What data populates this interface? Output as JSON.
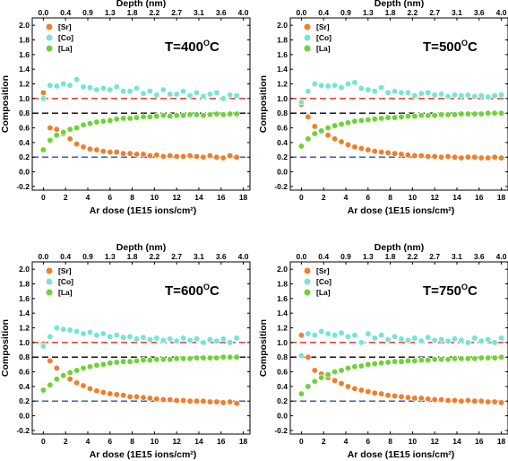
{
  "colors": {
    "Sr": "#f07f2a",
    "Co": "#74e6d3",
    "La": "#6ed336",
    "ref_red": "#e8332a",
    "ref_black": "#000000",
    "ref_blue": "#2f4fa8"
  },
  "chart_data": [
    {
      "type": "scatter",
      "temp_prefix": "T=",
      "temp_value": "400",
      "temp_sup": "O",
      "temp_unit": "C",
      "xlabel": "Ar dose (1E15 ions/cm²)",
      "ylabel": "Composition",
      "x2label": "Depth (nm)",
      "xlim": [
        -1,
        18.6
      ],
      "ylim": [
        -0.25,
        2.1
      ],
      "xticks": [
        "0",
        "2",
        "4",
        "6",
        "8",
        "10",
        "12",
        "14",
        "16",
        "18"
      ],
      "yticks": [
        "-0.2",
        "0.0",
        "0.2",
        "0.4",
        "0.6",
        "0.8",
        "1.0",
        "1.2",
        "1.4",
        "1.6",
        "1.8",
        "2.0"
      ],
      "x2ticks": [
        "0.0",
        "0.4",
        "0.9",
        "1.3",
        "1.8",
        "2.2",
        "2.7",
        "3.1",
        "3.6",
        "4.0"
      ],
      "reference_lines": [
        1.0,
        0.8,
        0.2
      ],
      "series": [
        {
          "name": "[Sr]",
          "x": [
            0,
            0.6,
            1.2,
            1.8,
            2.4,
            3,
            3.6,
            4.2,
            4.8,
            5.4,
            6,
            6.6,
            7.2,
            7.8,
            8.4,
            9,
            9.6,
            10.2,
            10.8,
            11.4,
            12,
            12.6,
            13.2,
            13.8,
            14.4,
            15,
            15.6,
            16.2,
            16.8,
            17.4
          ],
          "y": [
            1.08,
            0.6,
            0.58,
            0.52,
            0.45,
            0.38,
            0.34,
            0.31,
            0.3,
            0.28,
            0.27,
            0.27,
            0.25,
            0.25,
            0.24,
            0.24,
            0.22,
            0.23,
            0.21,
            0.22,
            0.21,
            0.21,
            0.22,
            0.21,
            0.2,
            0.22,
            0.2,
            0.19,
            0.22,
            0.2
          ]
        },
        {
          "name": "[Co]",
          "x": [
            0,
            0.6,
            1.2,
            1.8,
            2.4,
            3,
            3.6,
            4.2,
            4.8,
            5.4,
            6,
            6.6,
            7.2,
            7.8,
            8.4,
            9,
            9.6,
            10.2,
            10.8,
            11.4,
            12,
            12.6,
            13.2,
            13.8,
            14.4,
            15,
            15.6,
            16.2,
            16.8,
            17.4
          ],
          "y": [
            1.0,
            1.18,
            1.17,
            1.2,
            1.18,
            1.26,
            1.16,
            1.15,
            1.12,
            1.14,
            1.12,
            1.16,
            1.1,
            1.1,
            1.14,
            1.07,
            1.1,
            1.05,
            1.12,
            1.06,
            1.06,
            1.1,
            1.04,
            1.08,
            1.03,
            1.06,
            1.08,
            1.0,
            1.05,
            1.04
          ]
        },
        {
          "name": "[La]",
          "x": [
            0,
            0.6,
            1.2,
            1.8,
            2.4,
            3,
            3.6,
            4.2,
            4.8,
            5.4,
            6,
            6.6,
            7.2,
            7.8,
            8.4,
            9,
            9.6,
            10.2,
            10.8,
            11.4,
            12,
            12.6,
            13.2,
            13.8,
            14.4,
            15,
            15.6,
            16.2,
            16.8,
            17.4
          ],
          "y": [
            0.3,
            0.43,
            0.5,
            0.54,
            0.58,
            0.6,
            0.64,
            0.66,
            0.68,
            0.69,
            0.7,
            0.72,
            0.73,
            0.73,
            0.74,
            0.75,
            0.75,
            0.76,
            0.77,
            0.76,
            0.77,
            0.77,
            0.78,
            0.78,
            0.77,
            0.78,
            0.79,
            0.78,
            0.79,
            0.79
          ]
        }
      ]
    },
    {
      "type": "scatter",
      "temp_prefix": "T=",
      "temp_value": "500",
      "temp_sup": "O",
      "temp_unit": "C",
      "xlabel": "Ar dose (1E15 ions/cm²)",
      "ylabel": "Composition",
      "x2label": "Depth (nm)",
      "xlim": [
        -1,
        18.6
      ],
      "ylim": [
        -0.25,
        2.1
      ],
      "xticks": [
        "0",
        "2",
        "4",
        "6",
        "8",
        "10",
        "12",
        "14",
        "16",
        "18"
      ],
      "yticks": [
        "-0.2",
        "0.0",
        "0.2",
        "0.4",
        "0.6",
        "0.8",
        "1.0",
        "1.2",
        "1.4",
        "1.6",
        "1.8",
        "2.0"
      ],
      "x2ticks": [
        "0.0",
        "0.4",
        "0.9",
        "1.3",
        "1.8",
        "2.2",
        "2.7",
        "3.1",
        "3.6",
        "4.0"
      ],
      "reference_lines": [
        1.0,
        0.8,
        0.2
      ],
      "series": [
        {
          "name": "[Sr]",
          "x": [
            0,
            0.6,
            1.2,
            1.8,
            2.4,
            3,
            3.6,
            4.2,
            4.8,
            5.4,
            6,
            6.6,
            7.2,
            7.8,
            8.4,
            9,
            9.6,
            10.2,
            10.8,
            11.4,
            12,
            12.6,
            13.2,
            13.8,
            14.4,
            15,
            15.6,
            16.2,
            16.8,
            17.4,
            18
          ],
          "y": [
            0.92,
            0.75,
            0.62,
            0.55,
            0.5,
            0.45,
            0.41,
            0.37,
            0.34,
            0.32,
            0.3,
            0.28,
            0.27,
            0.26,
            0.25,
            0.24,
            0.23,
            0.22,
            0.22,
            0.21,
            0.21,
            0.2,
            0.21,
            0.2,
            0.19,
            0.2,
            0.2,
            0.19,
            0.19,
            0.2,
            0.19
          ]
        },
        {
          "name": "[Co]",
          "x": [
            0,
            0.6,
            1.2,
            1.8,
            2.4,
            3,
            3.6,
            4.2,
            4.8,
            5.4,
            6,
            6.6,
            7.2,
            7.8,
            8.4,
            9,
            9.6,
            10.2,
            10.8,
            11.4,
            12,
            12.6,
            13.2,
            13.8,
            14.4,
            15,
            15.6,
            16.2,
            16.8,
            17.4,
            18
          ],
          "y": [
            0.95,
            1.1,
            1.2,
            1.18,
            1.17,
            1.18,
            1.15,
            1.2,
            1.22,
            1.14,
            1.12,
            1.1,
            1.15,
            1.08,
            1.1,
            1.08,
            1.08,
            1.04,
            1.07,
            1.08,
            1.05,
            1.06,
            1.03,
            1.05,
            1.04,
            1.05,
            1.03,
            1.04,
            1.02,
            1.04,
            1.05
          ]
        },
        {
          "name": "[La]",
          "x": [
            0,
            0.6,
            1.2,
            1.8,
            2.4,
            3,
            3.6,
            4.2,
            4.8,
            5.4,
            6,
            6.6,
            7.2,
            7.8,
            8.4,
            9,
            9.6,
            10.2,
            10.8,
            11.4,
            12,
            12.6,
            13.2,
            13.8,
            14.4,
            15,
            15.6,
            16.2,
            16.8,
            17.4,
            18
          ],
          "y": [
            0.35,
            0.45,
            0.52,
            0.56,
            0.6,
            0.63,
            0.65,
            0.67,
            0.69,
            0.7,
            0.71,
            0.72,
            0.73,
            0.74,
            0.74,
            0.75,
            0.76,
            0.76,
            0.77,
            0.77,
            0.77,
            0.78,
            0.78,
            0.78,
            0.79,
            0.79,
            0.79,
            0.79,
            0.8,
            0.8,
            0.8
          ]
        }
      ]
    },
    {
      "type": "scatter",
      "temp_prefix": "T=",
      "temp_value": "600",
      "temp_sup": "O",
      "temp_unit": "C",
      "xlabel": "Ar dose (1E15 ions/cm²)",
      "ylabel": "Composition",
      "x2label": "Depth (nm)",
      "xlim": [
        -1,
        18.6
      ],
      "ylim": [
        -0.25,
        2.1
      ],
      "xticks": [
        "0",
        "2",
        "4",
        "6",
        "8",
        "10",
        "12",
        "14",
        "16",
        "18"
      ],
      "yticks": [
        "-0.2",
        "0.0",
        "0.2",
        "0.4",
        "0.6",
        "0.8",
        "1.0",
        "1.2",
        "1.4",
        "1.6",
        "1.8",
        "2.0"
      ],
      "x2ticks": [
        "0.0",
        "0.4",
        "0.9",
        "1.3",
        "1.8",
        "2.2",
        "2.7",
        "3.1",
        "3.6",
        "4.0"
      ],
      "reference_lines": [
        1.0,
        0.8,
        0.2
      ],
      "series": [
        {
          "name": "[Sr]",
          "x": [
            0,
            0.6,
            1.2,
            1.8,
            2.4,
            3,
            3.6,
            4.2,
            4.8,
            5.4,
            6,
            6.6,
            7.2,
            7.8,
            8.4,
            9,
            9.6,
            10.2,
            10.8,
            11.4,
            12,
            12.6,
            13.2,
            13.8,
            14.4,
            15,
            15.6,
            16.2,
            16.8,
            17.4
          ],
          "y": [
            0.98,
            0.75,
            0.65,
            0.56,
            0.5,
            0.45,
            0.41,
            0.37,
            0.34,
            0.32,
            0.3,
            0.29,
            0.28,
            0.26,
            0.26,
            0.25,
            0.24,
            0.23,
            0.22,
            0.22,
            0.21,
            0.21,
            0.2,
            0.2,
            0.2,
            0.19,
            0.19,
            0.18,
            0.19,
            0.17
          ]
        },
        {
          "name": "[Co]",
          "x": [
            0,
            0.6,
            1.2,
            1.8,
            2.4,
            3,
            3.6,
            4.2,
            4.8,
            5.4,
            6,
            6.6,
            7.2,
            7.8,
            8.4,
            9,
            9.6,
            10.2,
            10.8,
            11.4,
            12,
            12.6,
            13.2,
            13.8,
            14.4,
            15,
            15.6,
            16.2,
            16.8,
            17.4
          ],
          "y": [
            0.95,
            1.08,
            1.2,
            1.18,
            1.17,
            1.15,
            1.12,
            1.14,
            1.1,
            1.12,
            1.08,
            1.1,
            1.07,
            1.08,
            1.05,
            1.07,
            1.04,
            1.06,
            1.03,
            1.05,
            1.02,
            1.06,
            1.03,
            1.05,
            1.0,
            1.04,
            1.02,
            1.05,
            1.0,
            1.06
          ]
        },
        {
          "name": "[La]",
          "x": [
            0,
            0.6,
            1.2,
            1.8,
            2.4,
            3,
            3.6,
            4.2,
            4.8,
            5.4,
            6,
            6.6,
            7.2,
            7.8,
            8.4,
            9,
            9.6,
            10.2,
            10.8,
            11.4,
            12,
            12.6,
            13.2,
            13.8,
            14.4,
            15,
            15.6,
            16.2,
            16.8,
            17.4
          ],
          "y": [
            0.35,
            0.42,
            0.5,
            0.55,
            0.59,
            0.62,
            0.65,
            0.67,
            0.69,
            0.7,
            0.72,
            0.73,
            0.74,
            0.74,
            0.75,
            0.76,
            0.76,
            0.77,
            0.77,
            0.77,
            0.78,
            0.78,
            0.78,
            0.79,
            0.79,
            0.79,
            0.79,
            0.8,
            0.8,
            0.8
          ]
        }
      ]
    },
    {
      "type": "scatter",
      "temp_prefix": "T=",
      "temp_value": "750",
      "temp_sup": "O",
      "temp_unit": "C",
      "xlabel": "Ar dose (1E15 ions/cm²)",
      "ylabel": "Composition",
      "x2label": "Depth (nm)",
      "xlim": [
        -1,
        18.6
      ],
      "ylim": [
        -0.25,
        2.1
      ],
      "xticks": [
        "0",
        "2",
        "4",
        "6",
        "8",
        "10",
        "12",
        "14",
        "16",
        "18"
      ],
      "yticks": [
        "-0.2",
        "0.0",
        "0.2",
        "0.4",
        "0.6",
        "0.8",
        "1.0",
        "1.2",
        "1.4",
        "1.6",
        "1.8",
        "2.0"
      ],
      "x2ticks": [
        "0.0",
        "0.4",
        "0.9",
        "1.3",
        "1.8",
        "2.2",
        "2.7",
        "3.1",
        "3.6",
        "4.0"
      ],
      "reference_lines": [
        1.0,
        0.8,
        0.2
      ],
      "series": [
        {
          "name": "[Sr]",
          "x": [
            0,
            0.6,
            1.2,
            1.8,
            2.4,
            3,
            3.6,
            4.2,
            4.8,
            5.4,
            6,
            6.6,
            7.2,
            7.8,
            8.4,
            9,
            9.6,
            10.2,
            10.8,
            11.4,
            12,
            12.6,
            13.2,
            13.8,
            14.4,
            15,
            15.6,
            16.2,
            16.8,
            17.4,
            18
          ],
          "y": [
            1.1,
            0.8,
            0.62,
            0.57,
            0.52,
            0.48,
            0.44,
            0.4,
            0.37,
            0.35,
            0.33,
            0.31,
            0.3,
            0.28,
            0.27,
            0.26,
            0.25,
            0.24,
            0.24,
            0.23,
            0.22,
            0.22,
            0.21,
            0.21,
            0.2,
            0.21,
            0.2,
            0.2,
            0.19,
            0.19,
            0.18
          ]
        },
        {
          "name": "[Co]",
          "x": [
            0,
            0.6,
            1.2,
            1.8,
            2.4,
            3,
            3.6,
            4.2,
            4.8,
            5.4,
            6,
            6.6,
            7.2,
            7.8,
            8.4,
            9,
            9.6,
            10.2,
            10.8,
            11.4,
            12,
            12.6,
            13.2,
            13.8,
            14.4,
            15,
            15.6,
            16.2,
            16.8,
            17.4,
            18
          ],
          "y": [
            0.82,
            1.12,
            1.1,
            1.15,
            1.12,
            1.1,
            1.13,
            1.08,
            1.1,
            1.0,
            1.12,
            1.06,
            1.1,
            1.04,
            1.08,
            1.05,
            1.03,
            1.06,
            1.02,
            1.07,
            1.03,
            1.04,
            1.02,
            1.05,
            1.03,
            1.0,
            1.06,
            1.02,
            1.04,
            1.0,
            1.06
          ]
        },
        {
          "name": "[La]",
          "x": [
            0,
            0.6,
            1.2,
            1.8,
            2.4,
            3,
            3.6,
            4.2,
            4.8,
            5.4,
            6,
            6.6,
            7.2,
            7.8,
            8.4,
            9,
            9.6,
            10.2,
            10.8,
            11.4,
            12,
            12.6,
            13.2,
            13.8,
            14.4,
            15,
            15.6,
            16.2,
            16.8,
            17.4,
            18
          ],
          "y": [
            0.3,
            0.4,
            0.47,
            0.52,
            0.56,
            0.6,
            0.62,
            0.65,
            0.67,
            0.68,
            0.7,
            0.71,
            0.72,
            0.73,
            0.74,
            0.74,
            0.75,
            0.75,
            0.76,
            0.76,
            0.77,
            0.77,
            0.77,
            0.78,
            0.78,
            0.78,
            0.78,
            0.79,
            0.79,
            0.79,
            0.8
          ]
        }
      ]
    }
  ]
}
